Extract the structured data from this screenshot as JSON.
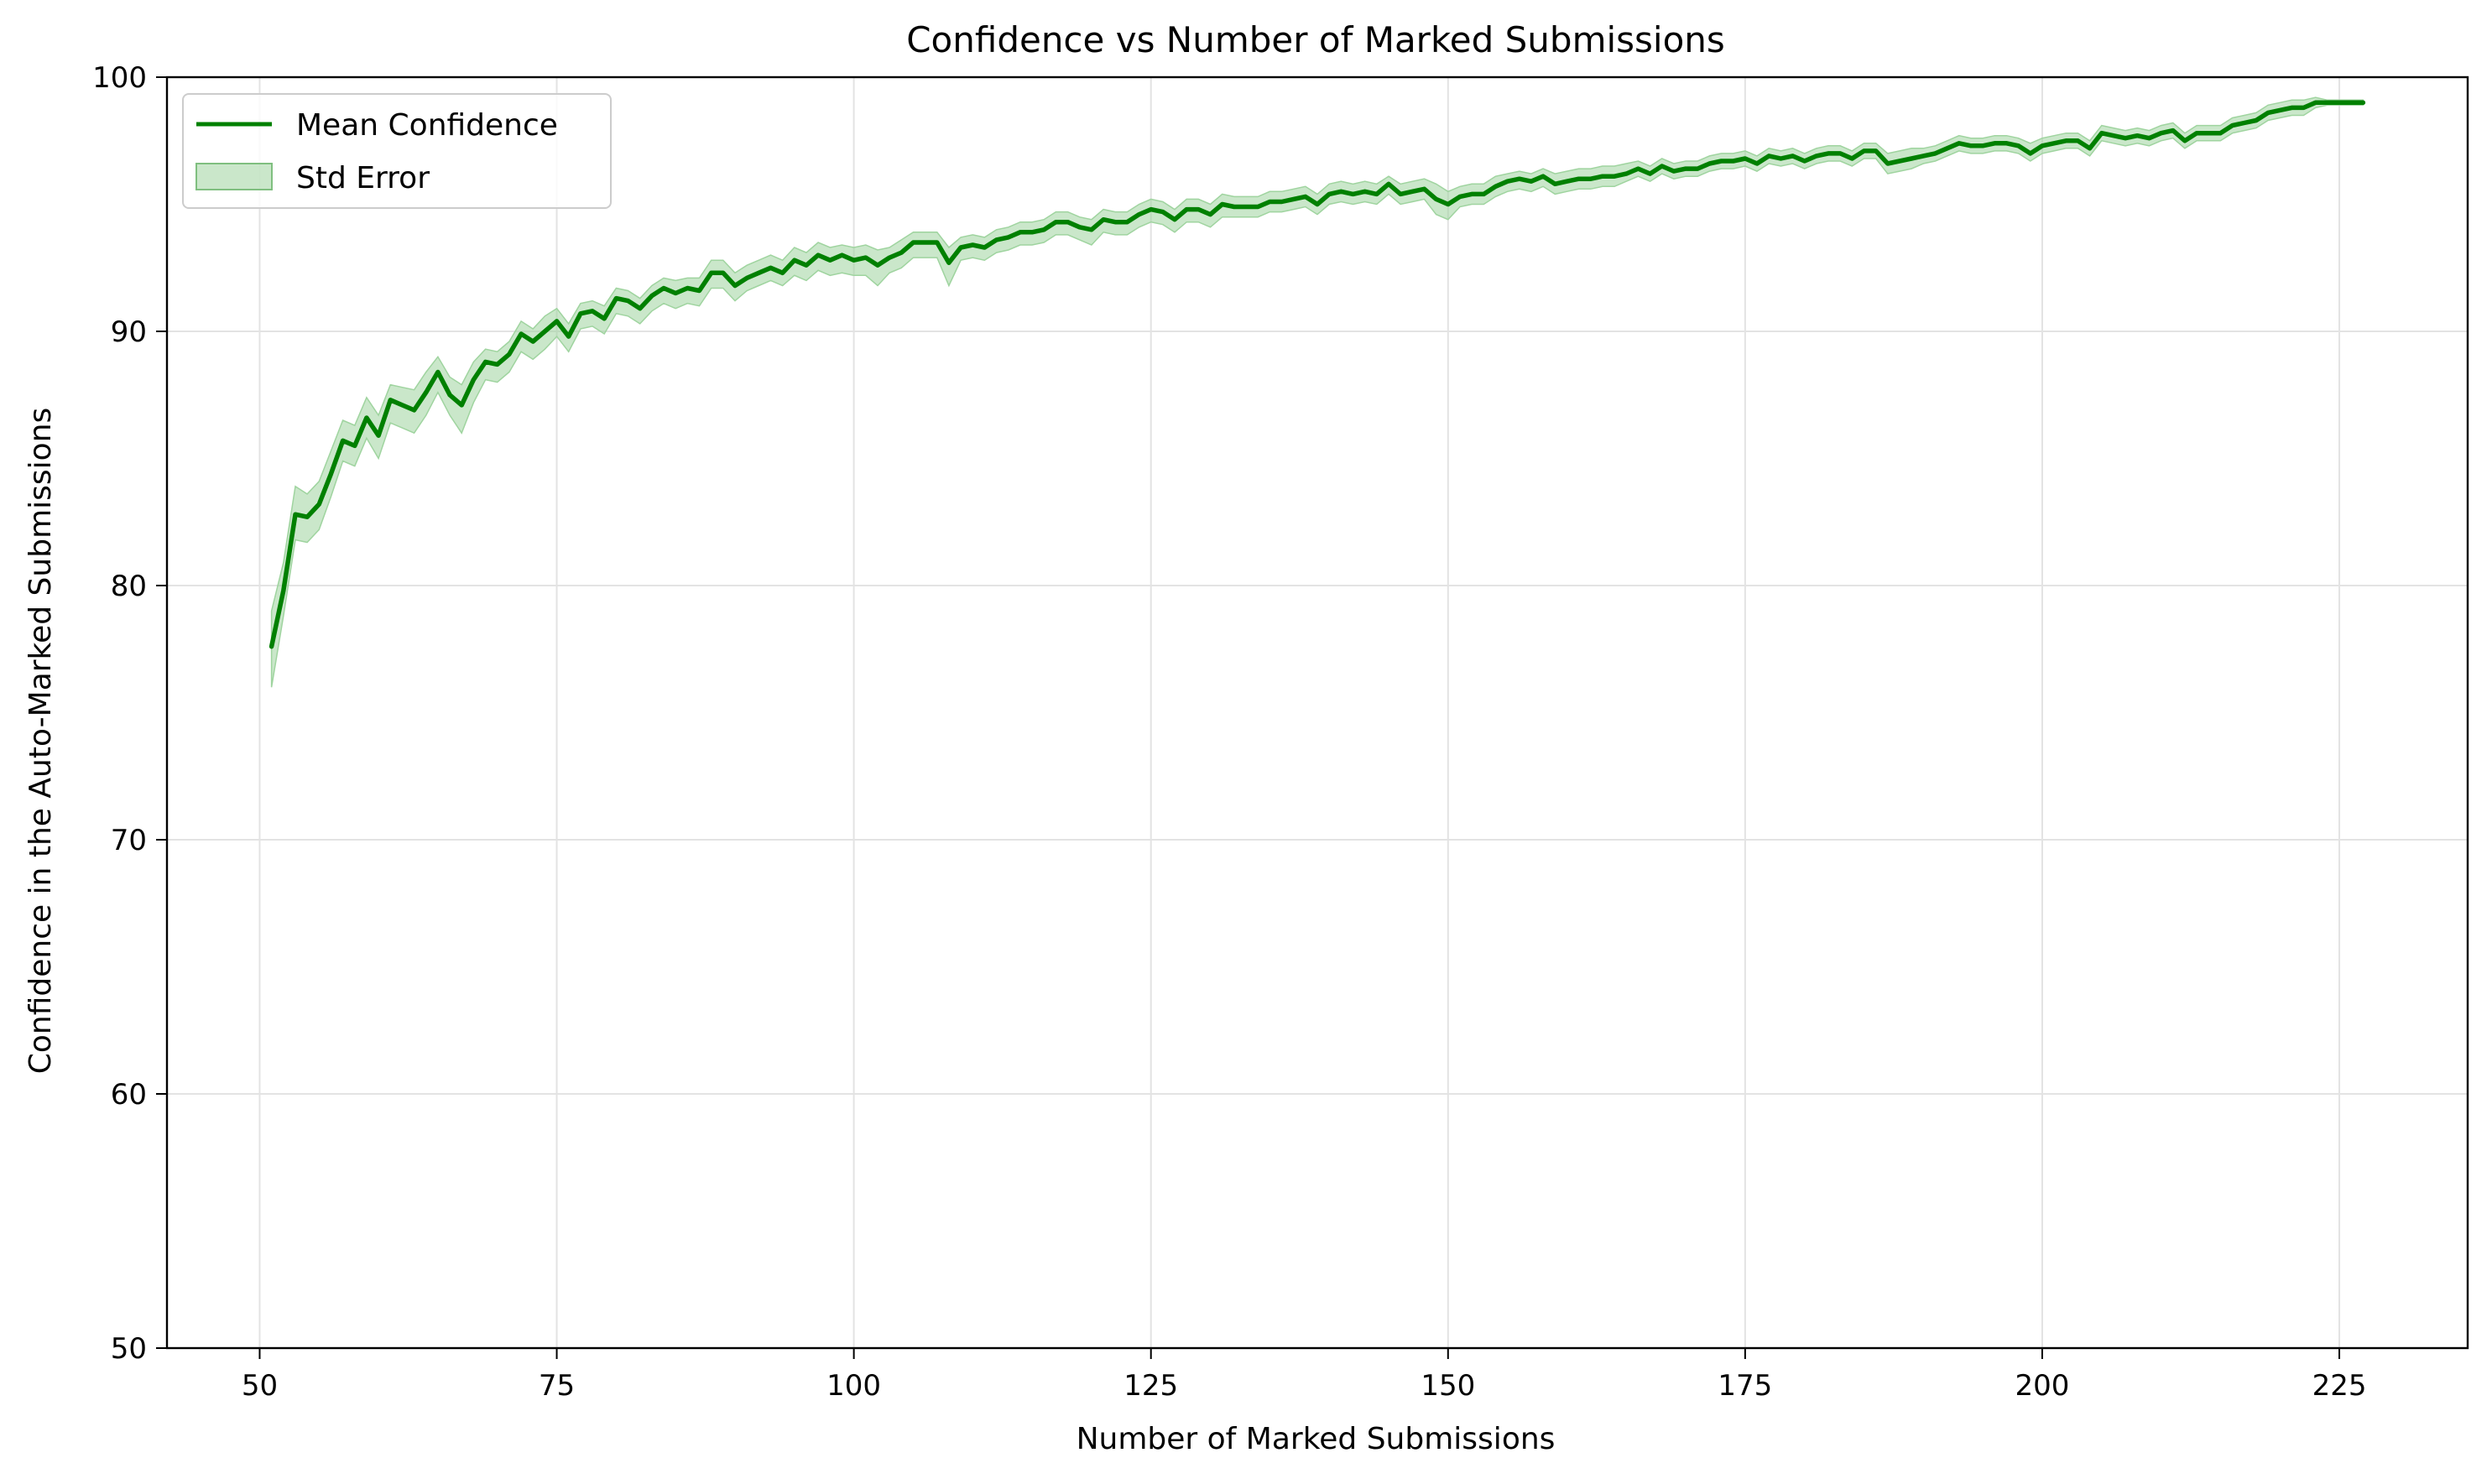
{
  "chart_data": {
    "type": "line",
    "title": "Confidence vs Number of Marked Submissions",
    "xlabel": "Number of Marked Submissions",
    "ylabel": "Confidence in the Auto-Marked Submissions",
    "xlim": [
      42.2,
      235.8
    ],
    "ylim": [
      50,
      100
    ],
    "xticks": [
      50,
      75,
      100,
      125,
      150,
      175,
      200,
      225
    ],
    "yticks": [
      50,
      60,
      70,
      80,
      90,
      100
    ],
    "grid": true,
    "legend_position": "top-left",
    "legend": [
      "Mean Confidence",
      "Std Error"
    ],
    "colors": {
      "line": "#008000",
      "band": "#9fd49f",
      "grid": "#e3e3e3"
    },
    "series": [
      {
        "name": "Mean Confidence",
        "x": [
          51,
          52,
          53,
          54,
          55,
          56,
          57,
          58,
          59,
          60,
          61,
          62,
          63,
          64,
          65,
          66,
          67,
          68,
          69,
          70,
          71,
          72,
          73,
          74,
          75,
          76,
          77,
          78,
          79,
          80,
          81,
          82,
          83,
          84,
          85,
          86,
          87,
          88,
          89,
          90,
          91,
          92,
          93,
          94,
          95,
          96,
          97,
          98,
          99,
          100,
          101,
          102,
          103,
          104,
          105,
          106,
          107,
          108,
          109,
          110,
          111,
          112,
          113,
          114,
          115,
          116,
          117,
          118,
          119,
          120,
          121,
          122,
          123,
          124,
          125,
          126,
          127,
          128,
          129,
          130,
          131,
          132,
          133,
          134,
          135,
          136,
          137,
          138,
          139,
          140,
          141,
          142,
          143,
          144,
          145,
          146,
          147,
          148,
          149,
          150,
          151,
          152,
          153,
          154,
          155,
          156,
          157,
          158,
          159,
          160,
          161,
          162,
          163,
          164,
          165,
          166,
          167,
          168,
          169,
          170,
          171,
          172,
          173,
          174,
          175,
          176,
          177,
          178,
          179,
          180,
          181,
          182,
          183,
          184,
          185,
          186,
          187,
          188,
          189,
          190,
          191,
          192,
          193,
          194,
          195,
          196,
          197,
          198,
          199,
          200,
          201,
          202,
          203,
          204,
          205,
          206,
          207,
          208,
          209,
          210,
          211,
          212,
          213,
          214,
          215,
          216,
          217,
          218,
          219,
          220,
          221,
          222,
          223,
          224,
          225,
          226,
          227
        ],
        "y": [
          77.6,
          79.8,
          82.8,
          82.7,
          83.2,
          84.4,
          85.7,
          85.5,
          86.6,
          85.9,
          87.3,
          87.1,
          86.9,
          87.6,
          88.4,
          87.5,
          87.1,
          88.1,
          88.8,
          88.7,
          89.1,
          89.9,
          89.6,
          90.0,
          90.4,
          89.8,
          90.7,
          90.8,
          90.5,
          91.3,
          91.2,
          90.9,
          91.4,
          91.7,
          91.5,
          91.7,
          91.6,
          92.3,
          92.3,
          91.8,
          92.1,
          92.3,
          92.5,
          92.3,
          92.8,
          92.6,
          93.0,
          92.8,
          93.0,
          92.8,
          92.9,
          92.6,
          92.9,
          93.1,
          93.5,
          93.5,
          93.5,
          92.7,
          93.3,
          93.4,
          93.3,
          93.6,
          93.7,
          93.9,
          93.9,
          94.0,
          94.3,
          94.3,
          94.1,
          94.0,
          94.4,
          94.3,
          94.3,
          94.6,
          94.8,
          94.7,
          94.4,
          94.8,
          94.8,
          94.6,
          95.0,
          94.9,
          94.9,
          94.9,
          95.1,
          95.1,
          95.2,
          95.3,
          95.0,
          95.4,
          95.5,
          95.4,
          95.5,
          95.4,
          95.8,
          95.4,
          95.5,
          95.6,
          95.2,
          95.0,
          95.3,
          95.4,
          95.4,
          95.7,
          95.9,
          96.0,
          95.9,
          96.1,
          95.8,
          95.9,
          96.0,
          96.0,
          96.1,
          96.1,
          96.2,
          96.4,
          96.2,
          96.5,
          96.3,
          96.4,
          96.4,
          96.6,
          96.7,
          96.7,
          96.8,
          96.6,
          96.9,
          96.8,
          96.9,
          96.7,
          96.9,
          97.0,
          97.0,
          96.8,
          97.1,
          97.1,
          96.6,
          96.7,
          96.8,
          96.9,
          97.0,
          97.2,
          97.4,
          97.3,
          97.3,
          97.4,
          97.4,
          97.3,
          97.0,
          97.3,
          97.4,
          97.5,
          97.5,
          97.2,
          97.8,
          97.7,
          97.6,
          97.7,
          97.6,
          97.8,
          97.9,
          97.5,
          97.8,
          97.8,
          97.8,
          98.1,
          98.2,
          98.3,
          98.6,
          98.7,
          98.8,
          98.8,
          99.0,
          99.0,
          99.0,
          99.0,
          99.0
        ]
      },
      {
        "name": "Std Error",
        "lower": [
          76.0,
          78.8,
          81.8,
          81.7,
          82.2,
          83.5,
          84.9,
          84.7,
          85.8,
          85.0,
          86.4,
          86.2,
          86.0,
          86.7,
          87.6,
          86.7,
          86.0,
          87.2,
          88.1,
          88.0,
          88.4,
          89.2,
          88.9,
          89.3,
          89.8,
          89.2,
          90.1,
          90.2,
          89.9,
          90.7,
          90.6,
          90.3,
          90.8,
          91.1,
          90.9,
          91.1,
          91.0,
          91.7,
          91.7,
          91.2,
          91.6,
          91.8,
          92.0,
          91.8,
          92.2,
          92.0,
          92.4,
          92.2,
          92.3,
          92.2,
          92.2,
          91.8,
          92.3,
          92.5,
          92.9,
          92.9,
          92.9,
          91.8,
          92.8,
          92.9,
          92.8,
          93.1,
          93.2,
          93.4,
          93.4,
          93.5,
          93.8,
          93.8,
          93.6,
          93.4,
          93.9,
          93.8,
          93.8,
          94.1,
          94.3,
          94.2,
          93.9,
          94.3,
          94.3,
          94.1,
          94.5,
          94.5,
          94.5,
          94.5,
          94.7,
          94.7,
          94.8,
          94.9,
          94.6,
          95.0,
          95.1,
          95.0,
          95.1,
          95.0,
          95.4,
          95.0,
          95.1,
          95.2,
          94.6,
          94.4,
          94.9,
          95.0,
          95.0,
          95.3,
          95.5,
          95.6,
          95.5,
          95.7,
          95.4,
          95.5,
          95.6,
          95.6,
          95.7,
          95.7,
          95.9,
          96.1,
          95.9,
          96.2,
          96.0,
          96.1,
          96.1,
          96.3,
          96.4,
          96.4,
          96.5,
          96.3,
          96.6,
          96.5,
          96.6,
          96.4,
          96.6,
          96.7,
          96.7,
          96.5,
          96.8,
          96.8,
          96.2,
          96.3,
          96.4,
          96.6,
          96.7,
          96.9,
          97.1,
          97.0,
          97.0,
          97.1,
          97.1,
          97.0,
          96.7,
          97.0,
          97.1,
          97.2,
          97.2,
          96.9,
          97.5,
          97.4,
          97.3,
          97.4,
          97.3,
          97.5,
          97.6,
          97.2,
          97.5,
          97.5,
          97.5,
          97.8,
          97.9,
          98.0,
          98.3,
          98.4,
          98.5,
          98.5,
          98.8,
          98.9,
          98.9,
          98.9,
          98.9
        ],
        "upper": [
          79.0,
          80.9,
          83.9,
          83.6,
          84.1,
          85.3,
          86.5,
          86.3,
          87.4,
          86.7,
          87.9,
          87.8,
          87.7,
          88.4,
          89.0,
          88.2,
          87.9,
          88.8,
          89.3,
          89.2,
          89.6,
          90.4,
          90.1,
          90.6,
          90.9,
          90.3,
          91.1,
          91.2,
          91.0,
          91.7,
          91.6,
          91.3,
          91.8,
          92.1,
          92.0,
          92.1,
          92.1,
          92.8,
          92.8,
          92.3,
          92.6,
          92.8,
          93.0,
          92.8,
          93.3,
          93.1,
          93.5,
          93.3,
          93.4,
          93.3,
          93.4,
          93.2,
          93.3,
          93.6,
          93.9,
          93.9,
          93.9,
          93.3,
          93.7,
          93.8,
          93.7,
          94.0,
          94.1,
          94.3,
          94.3,
          94.4,
          94.7,
          94.7,
          94.5,
          94.4,
          94.8,
          94.7,
          94.7,
          95.0,
          95.2,
          95.1,
          94.8,
          95.2,
          95.2,
          95.0,
          95.4,
          95.3,
          95.3,
          95.3,
          95.5,
          95.5,
          95.6,
          95.7,
          95.4,
          95.8,
          95.9,
          95.8,
          95.9,
          95.8,
          96.1,
          95.8,
          95.9,
          96.0,
          95.8,
          95.5,
          95.7,
          95.8,
          95.8,
          96.1,
          96.2,
          96.3,
          96.2,
          96.4,
          96.2,
          96.3,
          96.4,
          96.4,
          96.5,
          96.5,
          96.6,
          96.7,
          96.5,
          96.8,
          96.6,
          96.7,
          96.7,
          96.9,
          97.0,
          97.0,
          97.1,
          96.9,
          97.2,
          97.1,
          97.2,
          97.0,
          97.2,
          97.3,
          97.3,
          97.1,
          97.4,
          97.4,
          97.0,
          97.1,
          97.2,
          97.2,
          97.3,
          97.5,
          97.7,
          97.6,
          97.6,
          97.7,
          97.7,
          97.6,
          97.4,
          97.6,
          97.7,
          97.8,
          97.8,
          97.5,
          98.1,
          98.0,
          97.9,
          98.0,
          97.9,
          98.1,
          98.2,
          97.8,
          98.1,
          98.1,
          98.1,
          98.4,
          98.5,
          98.6,
          98.9,
          99.0,
          99.1,
          99.1,
          99.2,
          99.1,
          99.1,
          99.1,
          99.1
        ]
      }
    ]
  }
}
